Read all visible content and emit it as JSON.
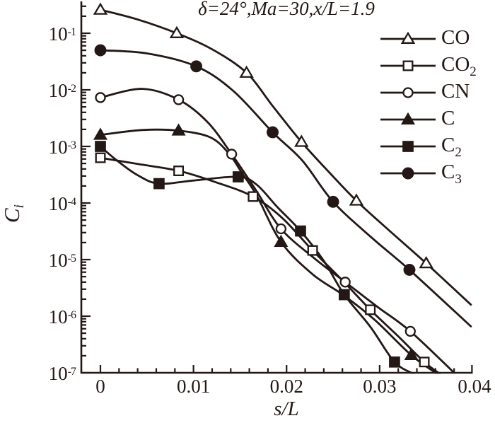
{
  "background": "#ffffff",
  "ink_color": "#231815",
  "chart_data": {
    "type": "line",
    "title": "δ=24°,Ma=30,x/L=1.9",
    "xlabel": "s/L",
    "ylabel_base": "C",
    "ylabel_sub": "i",
    "x_axis": {
      "min": -0.002,
      "max": 0.04,
      "major_ticks": [
        0,
        0.01,
        0.02,
        0.03,
        0.04
      ],
      "tick_labels": [
        "0",
        "0.01",
        "0.02",
        "0.03",
        "0.04"
      ],
      "minor_step": 0.002
    },
    "y_axis": {
      "scale": "log",
      "min": 1e-07,
      "max": 0.39,
      "tick_exponents": [
        -1,
        -2,
        -3,
        -4,
        -5,
        -6,
        -7
      ],
      "tick_label_base": "10"
    },
    "grid": false,
    "legend_position": "top-right",
    "series": [
      {
        "name": "CO",
        "label_base": "CO",
        "label_sub": "",
        "marker": "triangle-open",
        "points": [
          [
            0,
            0.26
          ],
          [
            0.0082,
            0.1
          ],
          [
            0.0157,
            0.02
          ],
          [
            0.0216,
            0.0012
          ],
          [
            0.0275,
            0.00011
          ],
          [
            0.035,
            8.6e-06
          ]
        ],
        "curve": [
          [
            0,
            0.26
          ],
          [
            0.004,
            0.175
          ],
          [
            0.0082,
            0.1
          ],
          [
            0.012,
            0.052
          ],
          [
            0.0157,
            0.02
          ],
          [
            0.0185,
            0.0052
          ],
          [
            0.0216,
            0.0012
          ],
          [
            0.0245,
            0.00036
          ],
          [
            0.0275,
            0.00011
          ],
          [
            0.031,
            3.3e-05
          ],
          [
            0.035,
            8.6e-06
          ],
          [
            0.0398,
            1.6e-06
          ]
        ]
      },
      {
        "name": "CO2",
        "label_base": "CO",
        "label_sub": "2",
        "marker": "square-open",
        "points": [
          [
            0,
            0.00063
          ],
          [
            0.0084,
            0.00037
          ],
          [
            0.0164,
            0.00013
          ],
          [
            0.0228,
            1.45e-05
          ],
          [
            0.029,
            1.3e-06
          ],
          [
            0.0348,
            1.55e-07
          ]
        ],
        "curve": [
          [
            0,
            0.00063
          ],
          [
            0.004,
            0.00049
          ],
          [
            0.0084,
            0.00037
          ],
          [
            0.0125,
            0.00023
          ],
          [
            0.0164,
            0.00013
          ],
          [
            0.0195,
            5.5e-05
          ],
          [
            0.0228,
            1.45e-05
          ],
          [
            0.026,
            4.3e-06
          ],
          [
            0.029,
            1.3e-06
          ],
          [
            0.032,
            4.4e-07
          ],
          [
            0.0348,
            1.55e-07
          ],
          [
            0.0365,
            9.5e-08
          ]
        ]
      },
      {
        "name": "CN",
        "label_base": "CN",
        "label_sub": "",
        "marker": "circle-open",
        "points": [
          [
            0,
            0.0073
          ],
          [
            0.0084,
            0.0067
          ],
          [
            0.0141,
            0.00073
          ],
          [
            0.0194,
            3.5e-05
          ],
          [
            0.0263,
            4e-06
          ],
          [
            0.0333,
            5.4e-07
          ]
        ],
        "curve": [
          [
            0,
            0.0073
          ],
          [
            0.0045,
            0.0104
          ],
          [
            0.0084,
            0.0067
          ],
          [
            0.0115,
            0.0027
          ],
          [
            0.0141,
            0.00073
          ],
          [
            0.0167,
            0.00017
          ],
          [
            0.0194,
            3.5e-05
          ],
          [
            0.023,
            1.05e-05
          ],
          [
            0.0263,
            4e-06
          ],
          [
            0.0298,
            1.45e-06
          ],
          [
            0.0333,
            5.4e-07
          ],
          [
            0.038,
            1e-07
          ]
        ]
      },
      {
        "name": "C",
        "label_base": "C",
        "label_sub": "",
        "marker": "triangle-filled",
        "points": [
          [
            0,
            0.0016
          ],
          [
            0.0084,
            0.0019
          ],
          [
            0.0194,
            2.05e-05
          ],
          [
            0.0334,
            2.05e-07
          ]
        ],
        "curve": [
          [
            0,
            0.0016
          ],
          [
            0.0045,
            0.00195
          ],
          [
            0.0084,
            0.0019
          ],
          [
            0.0118,
            0.00145
          ],
          [
            0.0138,
            0.00075
          ],
          [
            0.0152,
            0.00034
          ],
          [
            0.0168,
            0.000135
          ],
          [
            0.0194,
            2.05e-05
          ],
          [
            0.0228,
            5.5e-06
          ],
          [
            0.0262,
            2.3e-06
          ],
          [
            0.0295,
            8.5e-07
          ],
          [
            0.0334,
            2.05e-07
          ],
          [
            0.0362,
            9.5e-08
          ]
        ]
      },
      {
        "name": "C2",
        "label_base": "C",
        "label_sub": "2",
        "marker": "square-filled",
        "points": [
          [
            0,
            0.001
          ],
          [
            0.0063,
            0.00022
          ],
          [
            0.0148,
            0.00029
          ],
          [
            0.0215,
            3.2e-05
          ],
          [
            0.0262,
            2.4e-06
          ],
          [
            0.0316,
            1.55e-07
          ]
        ],
        "curve": [
          [
            0,
            0.001
          ],
          [
            0.0018,
            0.00056
          ],
          [
            0.004,
            0.00031
          ],
          [
            0.0063,
            0.00022
          ],
          [
            0.01,
            0.00025
          ],
          [
            0.0148,
            0.00029
          ],
          [
            0.0168,
            0.00021
          ],
          [
            0.019,
            8.5e-05
          ],
          [
            0.0215,
            3.2e-05
          ],
          [
            0.024,
            9.5e-06
          ],
          [
            0.0262,
            2.4e-06
          ],
          [
            0.029,
            6.5e-07
          ],
          [
            0.0316,
            1.55e-07
          ],
          [
            0.0337,
            9.5e-08
          ]
        ]
      },
      {
        "name": "C3",
        "label_base": "C",
        "label_sub": "3",
        "marker": "circle-filled",
        "points": [
          [
            0,
            0.05
          ],
          [
            0.0103,
            0.026
          ],
          [
            0.0185,
            0.00178
          ],
          [
            0.025,
            0.000105
          ],
          [
            0.0332,
            6.6e-06
          ]
        ],
        "curve": [
          [
            0,
            0.05
          ],
          [
            0.005,
            0.044
          ],
          [
            0.0103,
            0.026
          ],
          [
            0.0143,
            0.0095
          ],
          [
            0.0185,
            0.00178
          ],
          [
            0.0217,
            0.00056
          ],
          [
            0.025,
            0.000105
          ],
          [
            0.0292,
            2.4e-05
          ],
          [
            0.0332,
            6.6e-06
          ],
          [
            0.0398,
            6.6e-07
          ]
        ]
      }
    ]
  }
}
